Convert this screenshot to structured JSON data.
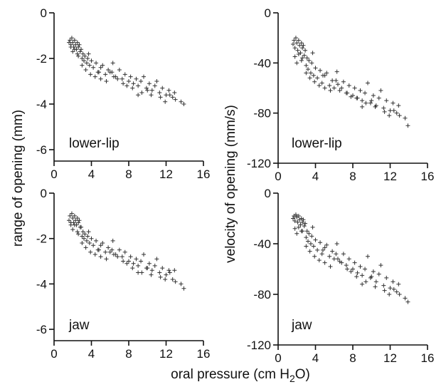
{
  "x_axis_label": "oral pressure (cm H",
  "x_axis_label_sub": "2",
  "x_axis_label_end": "O)",
  "left_y_axis_label": "range of opening (mm)",
  "right_y_axis_label": "velocity of opening (mm/s)",
  "chart_data": [
    {
      "type": "scatter",
      "panel_label": "lower-lip",
      "ylabel": "range of opening (mm)",
      "xlim": [
        0,
        16
      ],
      "ylim": [
        -6.5,
        0
      ],
      "x_ticks": [
        "0",
        "4",
        "8",
        "12",
        "16"
      ],
      "x_tick_values": [
        0,
        4,
        8,
        12,
        16
      ],
      "y_ticks": [
        "0",
        "-2",
        "-4",
        "-6"
      ],
      "y_tick_values": [
        0,
        -2,
        -4,
        -6
      ],
      "x": [
        1.6,
        1.7,
        1.8,
        1.9,
        2.0,
        2.1,
        2.2,
        2.3,
        2.4,
        2.5,
        2.6,
        2.7,
        2.8,
        1.8,
        2.0,
        2.2,
        2.5,
        2.9,
        3.0,
        3.1,
        3.2,
        3.3,
        3.5,
        3.6,
        3.8,
        4.0,
        4.2,
        4.5,
        4.7,
        5.0,
        5.2,
        5.5,
        5.8,
        6.0,
        6.3,
        6.6,
        7.0,
        7.3,
        7.6,
        8.0,
        8.2,
        8.5,
        8.8,
        9.0,
        9.3,
        9.6,
        9.9,
        10.2,
        10.5,
        10.8,
        11.0,
        11.3,
        11.6,
        12.0,
        12.3,
        12.7,
        13.0,
        13.6,
        13.9,
        3.0,
        3.4,
        3.9,
        4.4,
        5.0,
        5.6,
        6.2,
        6.8,
        7.4,
        8.4,
        9.4,
        10.4,
        11.4,
        12.4,
        2.6,
        3.7,
        4.8,
        6.4,
        7.8,
        9.0,
        10.0,
        11.9,
        12.9
      ],
      "y": [
        -1.3,
        -1.2,
        -1.4,
        -1.1,
        -1.3,
        -1.5,
        -1.2,
        -1.4,
        -1.6,
        -1.3,
        -1.5,
        -1.4,
        -1.7,
        -1.5,
        -1.7,
        -1.6,
        -1.8,
        -1.6,
        -2.0,
        -1.8,
        -2.1,
        -1.9,
        -2.2,
        -2.0,
        -2.3,
        -2.1,
        -2.4,
        -2.2,
        -2.6,
        -2.4,
        -2.3,
        -2.7,
        -2.5,
        -2.6,
        -2.2,
        -2.8,
        -2.5,
        -2.9,
        -2.7,
        -3.0,
        -2.8,
        -3.1,
        -2.9,
        -3.2,
        -3.0,
        -2.8,
        -3.3,
        -3.1,
        -3.4,
        -3.2,
        -3.0,
        -3.5,
        -3.3,
        -3.6,
        -3.4,
        -3.7,
        -3.8,
        -3.9,
        -4.0,
        -2.3,
        -2.5,
        -2.7,
        -2.8,
        -2.9,
        -3.0,
        -2.6,
        -2.9,
        -3.1,
        -3.3,
        -3.5,
        -3.6,
        -3.7,
        -3.6,
        -1.9,
        -1.8,
        -2.6,
        -2.8,
        -3.2,
        -3.6,
        -3.4,
        -3.9,
        -3.5
      ]
    },
    {
      "type": "scatter",
      "panel_label": "lower-lip",
      "ylabel": "velocity of opening (mm/s)",
      "xlim": [
        0,
        16
      ],
      "ylim": [
        -120,
        0
      ],
      "x_ticks": [
        "0",
        "4",
        "8",
        "12",
        "16"
      ],
      "x_tick_values": [
        0,
        4,
        8,
        12,
        16
      ],
      "y_ticks": [
        "0",
        "-40",
        "-80",
        "-120"
      ],
      "y_tick_values": [
        0,
        -40,
        -80,
        -120
      ],
      "x": [
        1.6,
        1.7,
        1.8,
        1.9,
        2.0,
        2.1,
        2.2,
        2.3,
        2.4,
        2.5,
        2.6,
        2.7,
        2.8,
        1.8,
        2.0,
        2.2,
        2.5,
        2.9,
        3.0,
        3.1,
        3.2,
        3.3,
        3.5,
        3.6,
        3.8,
        4.0,
        4.2,
        4.5,
        4.7,
        5.0,
        5.2,
        5.5,
        5.8,
        6.0,
        6.3,
        6.6,
        7.0,
        7.3,
        7.6,
        8.0,
        8.2,
        8.5,
        8.8,
        9.0,
        9.3,
        9.6,
        9.9,
        10.2,
        10.5,
        10.8,
        11.0,
        11.3,
        11.6,
        12.0,
        12.3,
        12.7,
        13.0,
        13.6,
        13.9,
        3.0,
        3.4,
        3.9,
        4.4,
        5.0,
        5.6,
        6.2,
        6.8,
        7.4,
        8.4,
        9.4,
        10.4,
        11.4,
        12.4,
        2.6,
        3.7,
        4.8,
        6.4,
        7.8,
        9.0,
        10.0,
        11.9,
        12.9
      ],
      "y": [
        -25,
        -22,
        -28,
        -20,
        -24,
        -30,
        -22,
        -26,
        -32,
        -24,
        -28,
        -26,
        -34,
        -35,
        -40,
        -33,
        -38,
        -30,
        -42,
        -36,
        -45,
        -38,
        -48,
        -40,
        -50,
        -44,
        -52,
        -46,
        -56,
        -50,
        -48,
        -58,
        -54,
        -60,
        -47,
        -62,
        -55,
        -64,
        -58,
        -66,
        -60,
        -68,
        -62,
        -70,
        -64,
        -56,
        -72,
        -66,
        -74,
        -68,
        -62,
        -76,
        -70,
        -78,
        -72,
        -80,
        -82,
        -84,
        -90,
        -48,
        -52,
        -55,
        -58,
        -60,
        -62,
        -54,
        -60,
        -64,
        -68,
        -72,
        -75,
        -79,
        -78,
        -36,
        -32,
        -50,
        -57,
        -67,
        -75,
        -70,
        -82,
        -74
      ]
    },
    {
      "type": "scatter",
      "panel_label": "jaw",
      "ylabel": "range of opening (mm)",
      "xlim": [
        0,
        16
      ],
      "ylim": [
        -6.5,
        0
      ],
      "x_ticks": [
        "0",
        "4",
        "8",
        "12",
        "16"
      ],
      "x_tick_values": [
        0,
        4,
        8,
        12,
        16
      ],
      "y_ticks": [
        "0",
        "-2",
        "-4",
        "-6"
      ],
      "y_tick_values": [
        0,
        -2,
        -4,
        -6
      ],
      "x": [
        1.6,
        1.7,
        1.8,
        1.9,
        2.0,
        2.1,
        2.2,
        2.3,
        2.4,
        2.5,
        2.6,
        2.7,
        2.8,
        1.8,
        2.0,
        2.2,
        2.5,
        2.9,
        3.0,
        3.1,
        3.2,
        3.3,
        3.5,
        3.6,
        3.8,
        4.0,
        4.2,
        4.5,
        4.7,
        5.0,
        5.2,
        5.5,
        5.8,
        6.0,
        6.3,
        6.6,
        7.0,
        7.3,
        7.6,
        8.0,
        8.2,
        8.5,
        8.8,
        9.0,
        9.3,
        9.6,
        9.9,
        10.2,
        10.5,
        10.8,
        11.0,
        11.3,
        11.6,
        12.0,
        12.3,
        12.7,
        13.0,
        13.6,
        13.9,
        3.0,
        3.4,
        3.9,
        4.4,
        5.0,
        5.6,
        6.2,
        6.8,
        7.4,
        8.4,
        9.4,
        10.4,
        11.4,
        12.4,
        2.6,
        3.7,
        4.8,
        6.4,
        7.8,
        9.0,
        10.0,
        11.9,
        12.9
      ],
      "y": [
        -1.2,
        -1.0,
        -1.3,
        -0.9,
        -1.1,
        -1.3,
        -1.0,
        -1.2,
        -1.4,
        -1.1,
        -1.3,
        -1.2,
        -1.5,
        -1.4,
        -1.6,
        -1.4,
        -1.7,
        -1.5,
        -1.9,
        -1.7,
        -2.0,
        -1.8,
        -2.1,
        -1.9,
        -2.2,
        -2.0,
        -2.3,
        -2.1,
        -2.5,
        -2.3,
        -2.2,
        -2.6,
        -2.4,
        -2.6,
        -2.1,
        -2.7,
        -2.5,
        -2.8,
        -2.6,
        -3.0,
        -2.8,
        -3.1,
        -2.9,
        -3.2,
        -3.0,
        -2.7,
        -3.3,
        -3.1,
        -3.4,
        -3.2,
        -2.9,
        -3.5,
        -3.3,
        -3.6,
        -3.4,
        -3.8,
        -3.9,
        -4.0,
        -4.2,
        -2.2,
        -2.4,
        -2.6,
        -2.7,
        -2.8,
        -2.9,
        -2.5,
        -2.8,
        -3.0,
        -3.3,
        -3.5,
        -3.6,
        -3.7,
        -3.5,
        -1.8,
        -1.7,
        -2.5,
        -2.7,
        -3.1,
        -3.5,
        -3.3,
        -3.8,
        -3.4
      ]
    },
    {
      "type": "scatter",
      "panel_label": "jaw",
      "ylabel": "velocity of opening (mm/s)",
      "xlim": [
        0,
        16
      ],
      "ylim": [
        -120,
        0
      ],
      "x_ticks": [
        "0",
        "4",
        "8",
        "12",
        "16"
      ],
      "x_tick_values": [
        0,
        4,
        8,
        12,
        16
      ],
      "y_ticks": [
        "0",
        "-40",
        "-80",
        "-120"
      ],
      "y_tick_values": [
        0,
        -40,
        -80,
        -120
      ],
      "x": [
        1.6,
        1.7,
        1.8,
        1.9,
        2.0,
        2.1,
        2.2,
        2.3,
        2.4,
        2.5,
        2.6,
        2.7,
        2.8,
        1.8,
        2.0,
        2.2,
        2.5,
        2.9,
        3.0,
        3.1,
        3.2,
        3.3,
        3.5,
        3.6,
        3.8,
        4.0,
        4.2,
        4.5,
        4.7,
        5.0,
        5.2,
        5.5,
        5.8,
        6.0,
        6.3,
        6.6,
        7.0,
        7.3,
        7.6,
        8.0,
        8.2,
        8.5,
        8.8,
        9.0,
        9.3,
        9.6,
        9.9,
        10.2,
        10.5,
        10.8,
        11.0,
        11.3,
        11.6,
        12.0,
        12.3,
        12.7,
        13.0,
        13.6,
        13.9,
        3.0,
        3.4,
        3.9,
        4.4,
        5.0,
        5.6,
        6.2,
        6.8,
        7.4,
        8.4,
        9.4,
        10.4,
        11.4,
        12.4,
        2.6,
        3.7,
        4.8,
        6.4,
        7.8,
        9.0,
        10.0,
        11.9,
        12.9
      ],
      "y": [
        -20,
        -18,
        -22,
        -17,
        -19,
        -23,
        -18,
        -21,
        -25,
        -20,
        -23,
        -21,
        -26,
        -28,
        -32,
        -27,
        -30,
        -24,
        -35,
        -30,
        -38,
        -32,
        -40,
        -34,
        -42,
        -37,
        -45,
        -39,
        -48,
        -43,
        -41,
        -50,
        -46,
        -52,
        -40,
        -54,
        -48,
        -57,
        -52,
        -60,
        -55,
        -63,
        -58,
        -65,
        -60,
        -50,
        -67,
        -62,
        -70,
        -64,
        -57,
        -73,
        -67,
        -75,
        -70,
        -78,
        -80,
        -83,
        -86,
        -42,
        -46,
        -50,
        -53,
        -55,
        -58,
        -48,
        -55,
        -60,
        -66,
        -70,
        -74,
        -77,
        -76,
        -30,
        -27,
        -45,
        -52,
        -62,
        -72,
        -66,
        -80,
        -72
      ]
    }
  ]
}
